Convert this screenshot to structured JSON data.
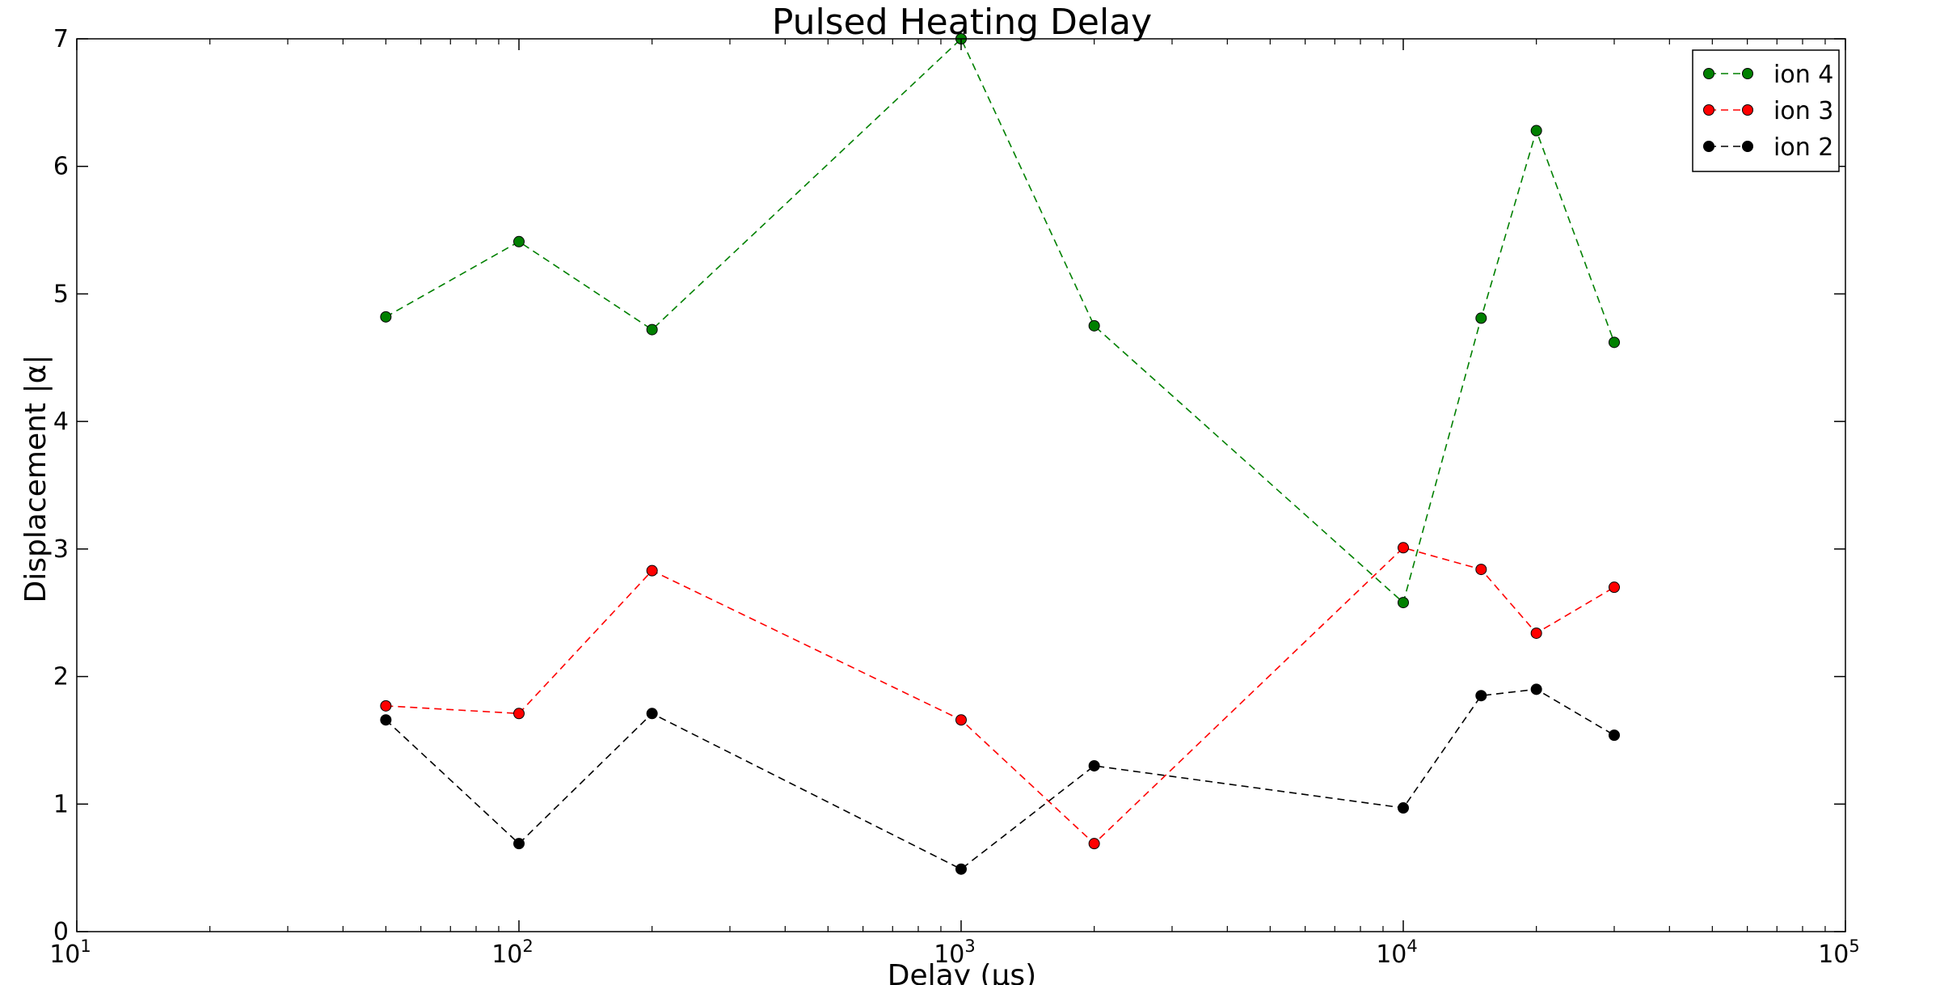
{
  "chart_data": {
    "type": "line",
    "title": "Pulsed Heating Delay",
    "xlabel": "Delay (μs)",
    "ylabel": "Displacement |α|",
    "xscale": "log",
    "xlim": [
      10,
      100000
    ],
    "ylim": [
      0,
      7
    ],
    "x_ticks": [
      {
        "value": 10,
        "base": "10",
        "exp": "1"
      },
      {
        "value": 100,
        "base": "10",
        "exp": "2"
      },
      {
        "value": 1000,
        "base": "10",
        "exp": "3"
      },
      {
        "value": 10000,
        "base": "10",
        "exp": "4"
      },
      {
        "value": 100000,
        "base": "10",
        "exp": "5"
      }
    ],
    "y_ticks": [
      0,
      1,
      2,
      3,
      4,
      5,
      6,
      7
    ],
    "grid": false,
    "legend_position": "top-right",
    "x": [
      50,
      100,
      200,
      1000,
      2000,
      10000,
      15000,
      20000,
      30000
    ],
    "series": [
      {
        "name": "ion 4",
        "color": "#008000",
        "style": "dashed",
        "marker": "circle",
        "values": [
          4.82,
          5.41,
          4.72,
          7.0,
          4.75,
          2.58,
          4.81,
          6.28,
          4.62
        ]
      },
      {
        "name": "ion 3",
        "color": "#ff0000",
        "style": "dashed",
        "marker": "circle",
        "values": [
          1.77,
          1.71,
          2.83,
          1.66,
          0.69,
          3.01,
          2.84,
          2.34,
          2.7
        ]
      },
      {
        "name": "ion 2",
        "color": "#000000",
        "style": "dashed",
        "marker": "circle",
        "values": [
          1.66,
          0.69,
          1.71,
          0.49,
          1.3,
          0.97,
          1.85,
          1.9,
          1.54
        ]
      }
    ]
  }
}
